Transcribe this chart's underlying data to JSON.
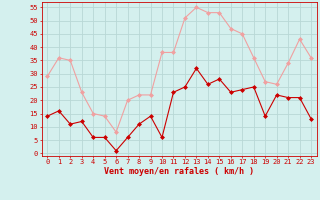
{
  "x": [
    0,
    1,
    2,
    3,
    4,
    5,
    6,
    7,
    8,
    9,
    10,
    11,
    12,
    13,
    14,
    15,
    16,
    17,
    18,
    19,
    20,
    21,
    22,
    23
  ],
  "vent_moyen": [
    14,
    16,
    11,
    12,
    6,
    6,
    1,
    6,
    11,
    14,
    6,
    23,
    25,
    32,
    26,
    28,
    23,
    24,
    25,
    14,
    22,
    21,
    21,
    13
  ],
  "en_rafales": [
    29,
    36,
    35,
    23,
    15,
    14,
    8,
    20,
    22,
    22,
    38,
    38,
    51,
    55,
    53,
    53,
    47,
    45,
    36,
    27,
    26,
    34,
    43,
    36
  ],
  "background_color": "#d4f0ee",
  "grid_color": "#b8d8d6",
  "moyen_color": "#cc0000",
  "rafales_color": "#f0a0a0",
  "xlabel": "Vent moyen/en rafales ( km/h )",
  "xlabel_color": "#cc0000",
  "tick_color": "#cc0000",
  "ylim": [
    -1,
    57
  ],
  "yticks": [
    0,
    5,
    10,
    15,
    20,
    25,
    30,
    35,
    40,
    45,
    50,
    55
  ],
  "xlim": [
    -0.5,
    23.5
  ]
}
